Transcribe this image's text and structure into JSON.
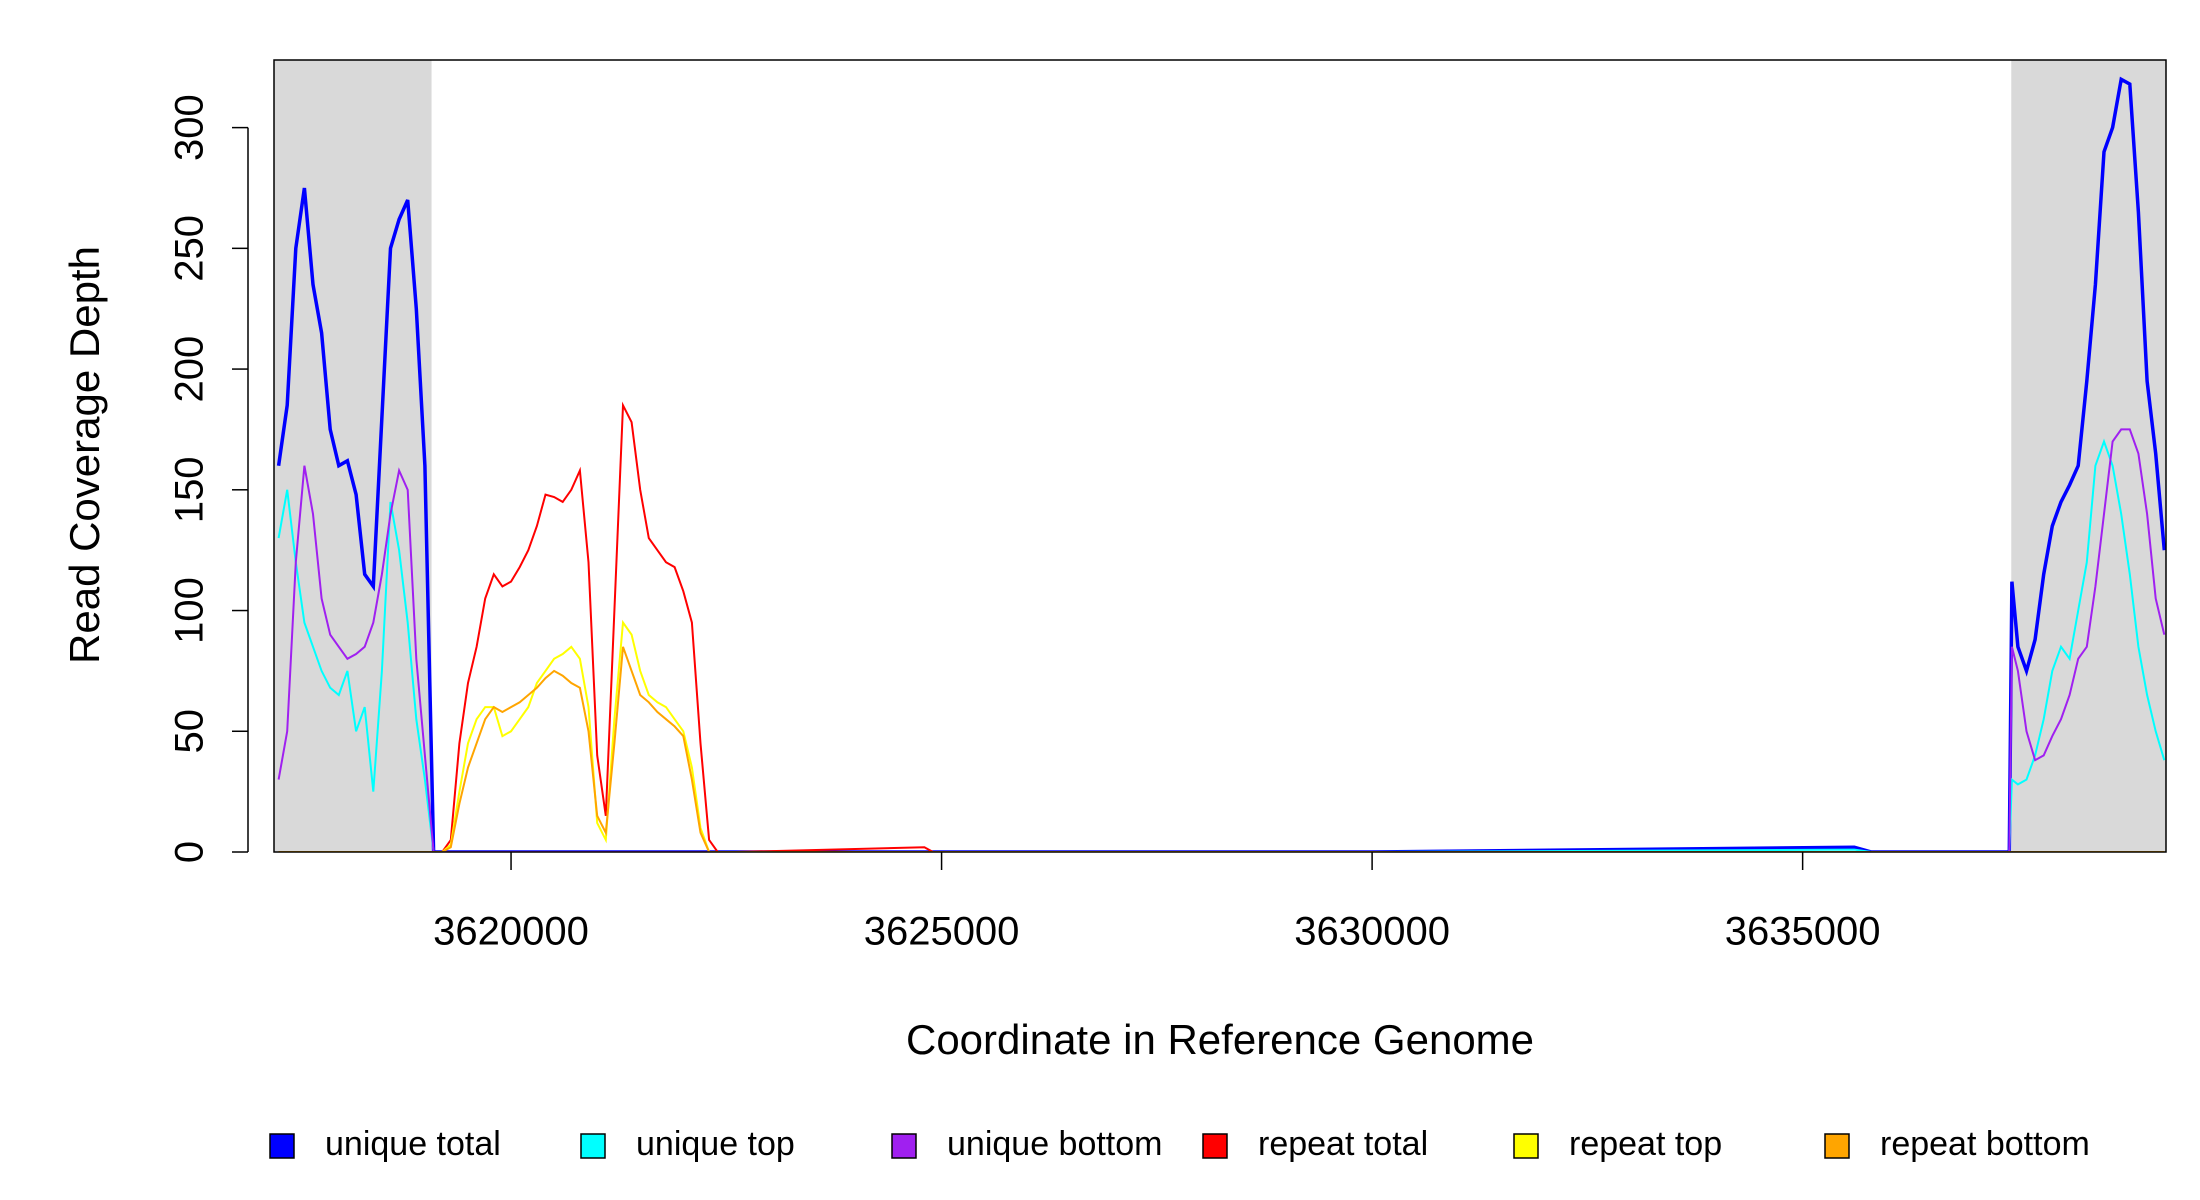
{
  "chart_data": {
    "type": "line",
    "y_label": "Read Coverage Depth",
    "x_label": "Coordinate in Reference Genome",
    "xlim": [
      3617247,
      3639220
    ],
    "ylim": [
      0,
      328
    ],
    "xticks": [
      3620000,
      3625000,
      3630000,
      3635000
    ],
    "yticks": [
      0,
      50,
      100,
      150,
      200,
      250,
      300
    ],
    "highlight_ranges": [
      [
        3617247,
        3619077
      ],
      [
        3637423,
        3639220
      ]
    ],
    "highlight_color": "#d9d9d9",
    "legend": "bottom",
    "x": [
      3617300,
      3617400,
      3617500,
      3617600,
      3617700,
      3617800,
      3617900,
      3618000,
      3618100,
      3618200,
      3618300,
      3618400,
      3618500,
      3618600,
      3618700,
      3618800,
      3618900,
      3619000,
      3619100,
      3619200,
      3619300,
      3619400,
      3619500,
      3619600,
      3619700,
      3619800,
      3619900,
      3620000,
      3620100,
      3620200,
      3620300,
      3620400,
      3620500,
      3620600,
      3620700,
      3620800,
      3620900,
      3621000,
      3621100,
      3621200,
      3621300,
      3621400,
      3621500,
      3621600,
      3621700,
      3621800,
      3621900,
      3622000,
      3622100,
      3622200,
      3622300,
      3622400,
      3622600,
      3624800,
      3624900,
      3630000,
      3635600,
      3635800,
      3637400,
      3637430,
      3637500,
      3637600,
      3637700,
      3637800,
      3637900,
      3638000,
      3638100,
      3638200,
      3638300,
      3638400,
      3638500,
      3638600,
      3638700,
      3638800,
      3638900,
      3639000,
      3639100,
      3639200
    ],
    "series": [
      {
        "name": "unique total",
        "color": "#0000ff",
        "values": [
          160,
          185,
          250,
          275,
          235,
          215,
          175,
          160,
          162,
          148,
          115,
          110,
          180,
          250,
          262,
          270,
          225,
          160,
          0,
          0,
          0,
          0,
          0,
          0,
          0,
          0,
          0,
          0,
          0,
          0,
          0,
          0,
          0,
          0,
          0,
          0,
          0,
          0,
          0,
          0,
          0,
          0,
          0,
          0,
          0,
          0,
          0,
          0,
          0,
          0,
          0,
          0,
          0,
          0,
          0,
          0,
          2,
          0,
          0,
          112,
          85,
          75,
          88,
          115,
          135,
          145,
          152,
          160,
          195,
          235,
          290,
          300,
          320,
          318,
          265,
          195,
          165,
          125
        ]
      },
      {
        "name": "unique top",
        "color": "#00ffff",
        "values": [
          130,
          150,
          120,
          95,
          85,
          75,
          68,
          65,
          75,
          50,
          60,
          25,
          75,
          145,
          125,
          95,
          55,
          30,
          0,
          0,
          0,
          0,
          0,
          0,
          0,
          0,
          0,
          0,
          0,
          0,
          0,
          0,
          0,
          0,
          0,
          0,
          0,
          0,
          0,
          0,
          0,
          0,
          0,
          0,
          0,
          0,
          0,
          0,
          0,
          0,
          0,
          0,
          0,
          0,
          0,
          0,
          1,
          0,
          0,
          30,
          28,
          30,
          40,
          55,
          75,
          85,
          80,
          100,
          120,
          160,
          170,
          160,
          140,
          115,
          85,
          65,
          50,
          38
        ]
      },
      {
        "name": "unique bottom",
        "color": "#a020f0",
        "values": [
          30,
          50,
          120,
          160,
          140,
          105,
          90,
          85,
          80,
          82,
          85,
          95,
          115,
          140,
          158,
          150,
          80,
          40,
          0,
          0,
          0,
          0,
          0,
          0,
          0,
          0,
          0,
          0,
          0,
          0,
          0,
          0,
          0,
          0,
          0,
          0,
          0,
          0,
          0,
          0,
          0,
          0,
          0,
          0,
          0,
          0,
          0,
          0,
          0,
          0,
          0,
          0,
          0,
          0,
          0,
          0,
          0,
          0,
          0,
          85,
          75,
          50,
          38,
          40,
          48,
          55,
          65,
          80,
          85,
          110,
          140,
          170,
          175,
          175,
          165,
          140,
          105,
          90
        ]
      },
      {
        "name": "repeat total",
        "color": "#ff0000",
        "values": [
          0,
          0,
          0,
          0,
          0,
          0,
          0,
          0,
          0,
          0,
          0,
          0,
          0,
          0,
          0,
          0,
          0,
          0,
          0,
          0,
          5,
          45,
          70,
          85,
          105,
          115,
          110,
          112,
          118,
          125,
          135,
          148,
          147,
          145,
          150,
          158,
          120,
          40,
          15,
          100,
          185,
          178,
          150,
          130,
          125,
          120,
          118,
          108,
          95,
          45,
          5,
          0,
          0,
          2,
          0,
          0,
          0,
          0,
          0,
          0,
          0,
          0,
          0,
          0,
          0,
          0,
          0,
          0,
          0,
          0,
          0,
          0,
          0,
          0,
          0,
          0,
          0,
          0
        ]
      },
      {
        "name": "repeat top",
        "color": "#ffff00",
        "values": [
          0,
          0,
          0,
          0,
          0,
          0,
          0,
          0,
          0,
          0,
          0,
          0,
          0,
          0,
          0,
          0,
          0,
          0,
          0,
          0,
          3,
          25,
          45,
          55,
          60,
          60,
          48,
          50,
          55,
          60,
          70,
          75,
          80,
          82,
          85,
          80,
          60,
          12,
          5,
          55,
          95,
          90,
          75,
          65,
          62,
          60,
          55,
          50,
          35,
          10,
          0,
          0,
          0,
          0,
          0,
          0,
          0,
          0,
          0,
          0,
          0,
          0,
          0,
          0,
          0,
          0,
          0,
          0,
          0,
          0,
          0,
          0,
          0,
          0,
          0,
          0,
          0,
          0
        ]
      },
      {
        "name": "repeat bottom",
        "color": "#ffa500",
        "values": [
          0,
          0,
          0,
          0,
          0,
          0,
          0,
          0,
          0,
          0,
          0,
          0,
          0,
          0,
          0,
          0,
          0,
          0,
          0,
          0,
          2,
          20,
          35,
          45,
          55,
          60,
          58,
          60,
          62,
          65,
          68,
          72,
          75,
          73,
          70,
          68,
          50,
          15,
          8,
          45,
          85,
          75,
          65,
          62,
          58,
          55,
          52,
          48,
          30,
          8,
          0,
          0,
          0,
          0,
          0,
          0,
          0,
          0,
          0,
          0,
          0,
          0,
          0,
          0,
          0,
          0,
          0,
          0,
          0,
          0,
          0,
          0,
          0,
          0,
          0,
          0,
          0,
          0
        ]
      }
    ]
  }
}
